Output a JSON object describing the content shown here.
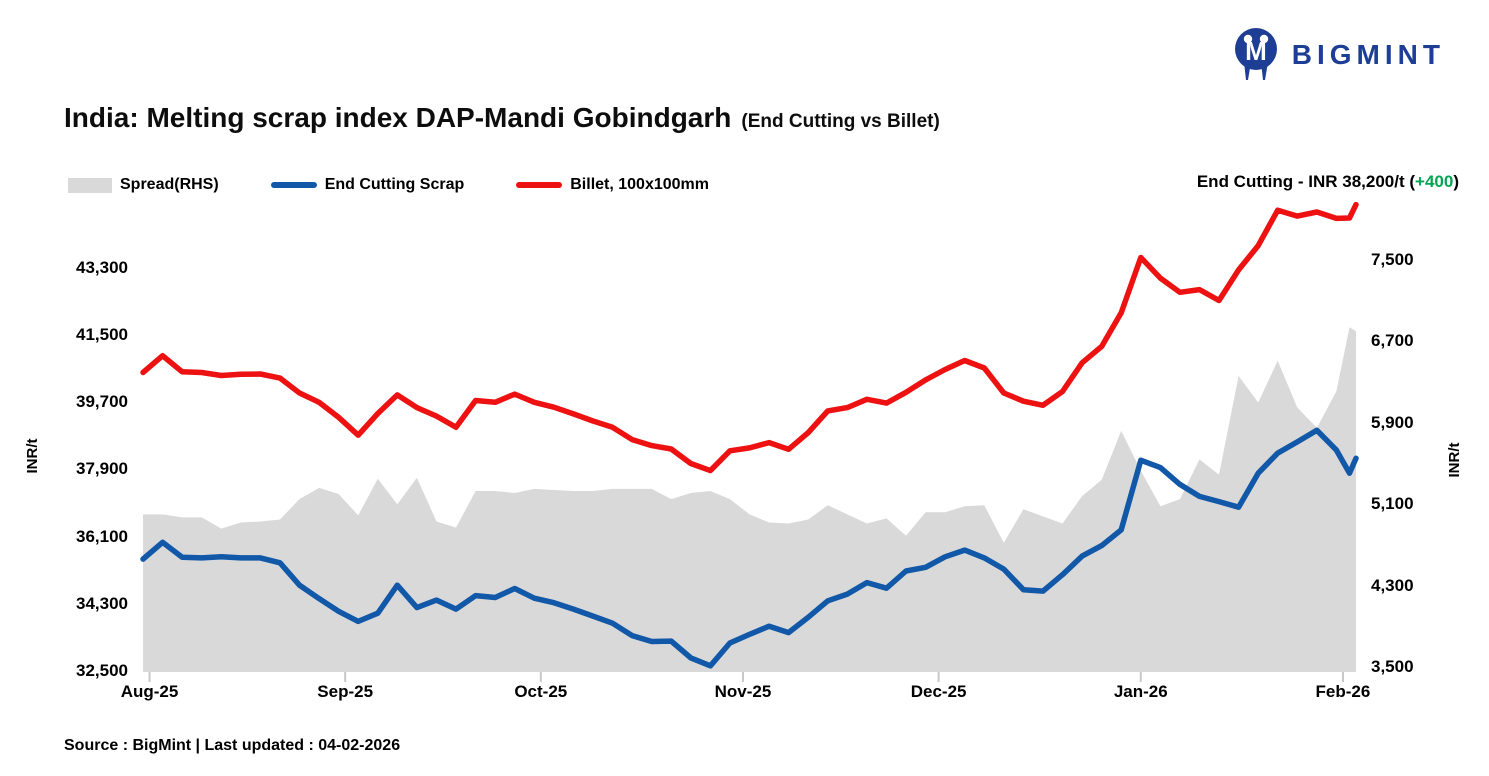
{
  "logo": {
    "text": "BIGMINT"
  },
  "title": {
    "main": "India: Melting scrap index DAP-Mandi Gobindgarh",
    "sub": "(End Cutting vs Billet)"
  },
  "legend": {
    "items": [
      {
        "label": "Spread(RHS)",
        "swatch": "area",
        "color": "#d9d9d9"
      },
      {
        "label": "End Cutting Scrap",
        "swatch": "line",
        "color": "#1158a8"
      },
      {
        "label": "Billet, 100x100mm",
        "swatch": "line",
        "color": "#ee1111"
      }
    ]
  },
  "annotation": {
    "prefix": "End Cutting - INR 38,200/t (",
    "change": "+400",
    "suffix": ")",
    "change_color": "#00a651"
  },
  "footer": {
    "text": "Source : BigMint | Last updated : 04-02-2026"
  },
  "colors": {
    "spread_area": "#d9d9d9",
    "end_cutting_line": "#1158a8",
    "billet_line": "#ee1111",
    "positive_change": "#00a651",
    "brand_navy": "#1d3e94",
    "x_tick_mark": "#c8c8c8"
  },
  "chart_data": {
    "type": "line",
    "title": "India: Melting scrap index DAP-Mandi Gobindgarh (End Cutting vs Billet)",
    "x_unit": "days since 01-08-2025",
    "x": [
      0,
      3,
      6,
      9,
      12,
      15,
      18,
      21,
      24,
      27,
      30,
      33,
      36,
      39,
      42,
      45,
      48,
      51,
      54,
      57,
      60,
      63,
      66,
      69,
      72,
      75,
      78,
      81,
      84,
      87,
      90,
      93,
      96,
      99,
      102,
      105,
      108,
      111,
      114,
      117,
      120,
      123,
      126,
      129,
      132,
      135,
      138,
      141,
      144,
      147,
      150,
      153,
      156,
      159,
      162,
      165,
      168,
      171,
      174,
      177,
      180,
      183,
      185,
      186
    ],
    "x_tick_labels": [
      {
        "day": 1,
        "label": "Aug-25"
      },
      {
        "day": 31,
        "label": "Sep-25"
      },
      {
        "day": 61,
        "label": "Oct-25"
      },
      {
        "day": 92,
        "label": "Nov-25"
      },
      {
        "day": 122,
        "label": "Dec-25"
      },
      {
        "day": 153,
        "label": "Jan-26"
      },
      {
        "day": 184,
        "label": "Feb-26"
      }
    ],
    "series": [
      {
        "name": "Spread(RHS)",
        "type": "area",
        "axis": "right",
        "color": "#d9d9d9",
        "values": [
          5000,
          5000,
          4970,
          4970,
          4860,
          4920,
          4930,
          4950,
          5150,
          5260,
          5200,
          4990,
          5350,
          5100,
          5360,
          4930,
          4870,
          5230,
          5230,
          5210,
          5250,
          5240,
          5230,
          5230,
          5250,
          5250,
          5250,
          5150,
          5210,
          5230,
          5150,
          5000,
          4920,
          4910,
          4950,
          5090,
          5000,
          4910,
          4960,
          4790,
          5020,
          5020,
          5080,
          5090,
          4720,
          5050,
          4980,
          4910,
          5180,
          5340,
          5820,
          5430,
          5080,
          5150,
          5540,
          5390,
          6360,
          6100,
          6510,
          6050,
          5850,
          6210,
          6840,
          6800
        ]
      },
      {
        "name": "End Cutting Scrap",
        "type": "line",
        "axis": "left",
        "color": "#1158a8",
        "values": [
          35500,
          35950,
          35550,
          35530,
          35560,
          35530,
          35530,
          35400,
          34800,
          34440,
          34100,
          33830,
          34050,
          34800,
          34200,
          34400,
          34160,
          34520,
          34470,
          34710,
          34450,
          34330,
          34160,
          33970,
          33780,
          33450,
          33290,
          33300,
          32850,
          32640,
          33250,
          33480,
          33700,
          33530,
          33940,
          34380,
          34560,
          34870,
          34720,
          35180,
          35280,
          35560,
          35740,
          35530,
          35230,
          34680,
          34640,
          35080,
          35580,
          35860,
          36280,
          38150,
          37950,
          37500,
          37180,
          37040,
          36890,
          37800,
          38340,
          38640,
          38950,
          38420,
          37800,
          38200
        ]
      },
      {
        "name": "Billet, 100x100mm",
        "type": "line",
        "axis": "left",
        "color": "#ee1111",
        "values": [
          40500,
          40950,
          40520,
          40500,
          40420,
          40450,
          40460,
          40350,
          39950,
          39700,
          39300,
          38820,
          39400,
          39900,
          39560,
          39330,
          39030,
          39750,
          39700,
          39920,
          39700,
          39570,
          39390,
          39200,
          39030,
          38700,
          38540,
          38450,
          38060,
          37870,
          38400,
          38480,
          38620,
          38440,
          38890,
          39470,
          39560,
          39780,
          39680,
          39970,
          40300,
          40580,
          40820,
          40620,
          39950,
          39730,
          39620,
          39990,
          40760,
          41200,
          42100,
          43580,
          43030,
          42650,
          42720,
          42430,
          43250,
          43900,
          44850,
          44690,
          44800,
          44630,
          44640,
          45000
        ]
      }
    ],
    "left_axis": {
      "label": "INR/t",
      "ticks": [
        32500,
        34300,
        36100,
        37900,
        39700,
        41500,
        43300
      ],
      "min": 32500,
      "max": 45100
    },
    "right_axis": {
      "label": "INR/t",
      "ticks": [
        3500,
        4300,
        5100,
        5900,
        6700,
        7500
      ],
      "min": 3500,
      "max": 8090
    },
    "last_values": {
      "end_cutting": 38200,
      "end_cutting_change": 400
    },
    "grid": false,
    "legend_position": "top-left"
  }
}
